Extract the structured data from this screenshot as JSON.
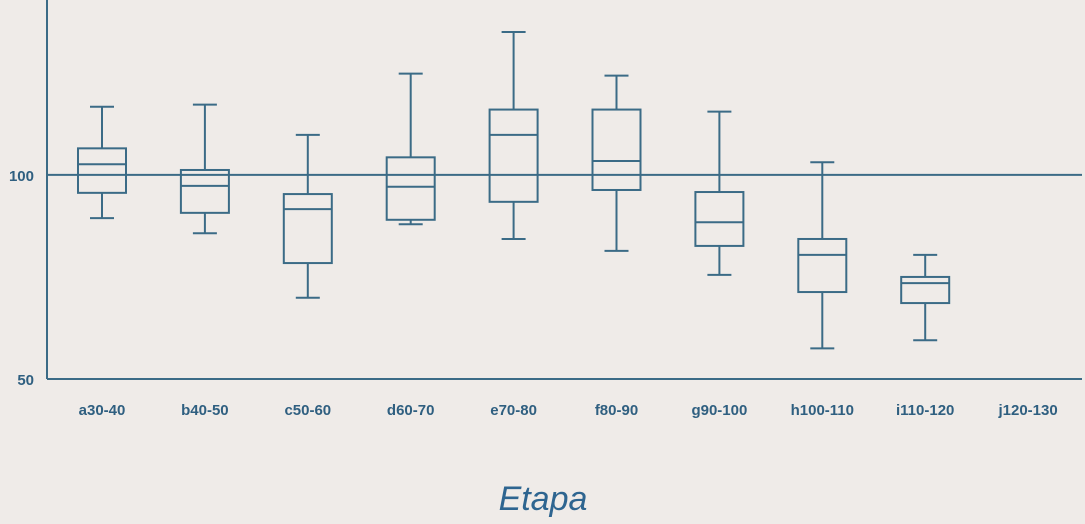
{
  "colors": {
    "background": "#efebe8",
    "stroke": "#3b6b86",
    "label": "#2f5f80",
    "title": "#2e6590"
  },
  "chart_data": {
    "type": "boxplot",
    "title": "",
    "xlabel": "Etapa",
    "ylabel": "",
    "categories": [
      "a30-40",
      "b40-50",
      "c50-60",
      "d60-70",
      "e70-80",
      "f80-90",
      "g90-100",
      "h100-110",
      "i110-120",
      "j120-130"
    ],
    "ylim": [
      50,
      135
    ],
    "yticks": [
      50,
      100
    ],
    "reference_line": 100,
    "boxes": [
      {
        "category": "a30-40",
        "min": 89.4,
        "q1": 95.6,
        "median": 102.6,
        "q3": 106.5,
        "max": 116.7
      },
      {
        "category": "b40-50",
        "min": 85.7,
        "q1": 90.7,
        "median": 97.3,
        "q3": 101.2,
        "max": 117.2
      },
      {
        "category": "c50-60",
        "min": 69.9,
        "q1": 78.4,
        "median": 91.6,
        "q3": 95.3,
        "max": 109.8
      },
      {
        "category": "d60-70",
        "min": 87.9,
        "q1": 89.0,
        "median": 97.1,
        "q3": 104.3,
        "max": 124.8
      },
      {
        "category": "e70-80",
        "min": 84.3,
        "q1": 93.4,
        "median": 109.8,
        "q3": 116.0,
        "max": 135.0
      },
      {
        "category": "f80-90",
        "min": 81.4,
        "q1": 96.3,
        "median": 103.4,
        "q3": 116.0,
        "max": 124.3
      },
      {
        "category": "g90-100",
        "min": 75.5,
        "q1": 82.6,
        "median": 88.4,
        "q3": 95.8,
        "max": 115.5
      },
      {
        "category": "h100-110",
        "min": 57.5,
        "q1": 71.3,
        "median": 80.4,
        "q3": 84.3,
        "max": 103.1
      },
      {
        "category": "i110-120",
        "min": 59.5,
        "q1": 68.6,
        "median": 73.5,
        "q3": 75.0,
        "max": 80.4
      },
      {
        "category": "j120-130",
        "min": null,
        "q1": null,
        "median": null,
        "q3": null,
        "max": null
      }
    ]
  }
}
